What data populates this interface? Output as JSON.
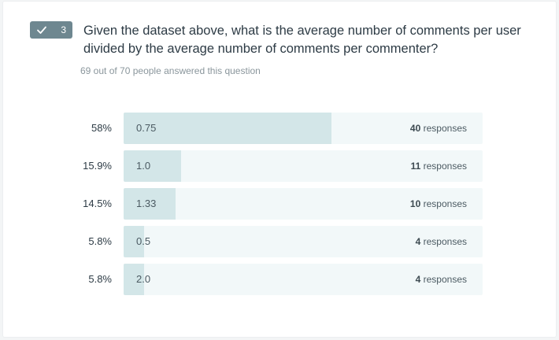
{
  "question": {
    "number": "3",
    "badge_icon": "check-icon",
    "text": "Given the dataset above, what is the average number of comments per user divided by the average number of comments per commenter?",
    "answered_text": "69 out of 70 people answered this question"
  },
  "colors": {
    "badge": "#6e8790",
    "bar_fill": "#d3e6e8",
    "bar_track": "#f2f8f9"
  },
  "responses_label": "responses",
  "answers": [
    {
      "percent": "58%",
      "label": "0.75",
      "count": "40",
      "fraction": 0.58
    },
    {
      "percent": "15.9%",
      "label": "1.0",
      "count": "11",
      "fraction": 0.159
    },
    {
      "percent": "14.5%",
      "label": "1.33",
      "count": "10",
      "fraction": 0.145
    },
    {
      "percent": "5.8%",
      "label": "0.5",
      "count": "4",
      "fraction": 0.058
    },
    {
      "percent": "5.8%",
      "label": "2.0",
      "count": "4",
      "fraction": 0.058
    }
  ]
}
